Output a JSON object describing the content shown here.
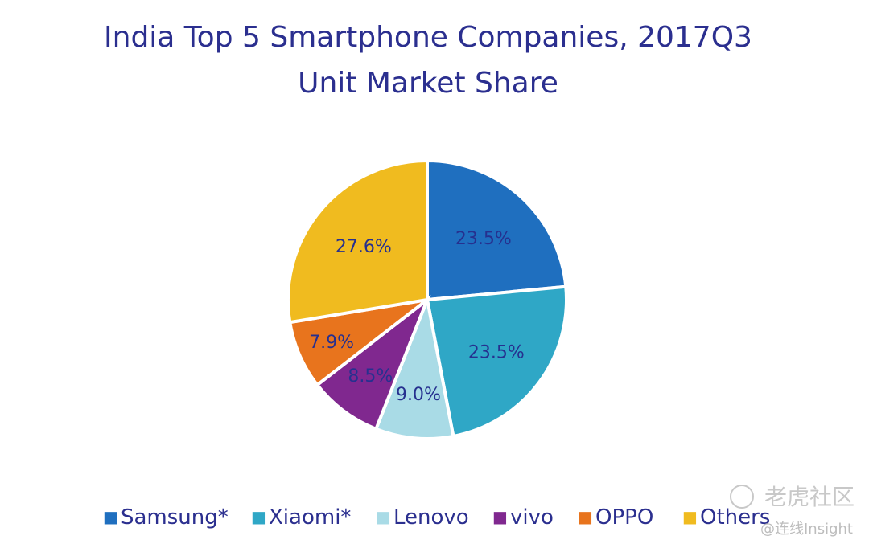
{
  "chart_data": {
    "type": "pie",
    "title": "India Top 5 Smartphone Companies, 2017Q3",
    "subtitle": "Unit Market Share",
    "categories": [
      "Samsung*",
      "Xiaomi*",
      "Lenovo",
      "vivo",
      "OPPO",
      "Others"
    ],
    "values": [
      23.5,
      23.5,
      9.0,
      8.5,
      7.9,
      27.6
    ],
    "labels": [
      "23.5%",
      "23.5%",
      "9.0%",
      "8.5%",
      "7.9%",
      "27.6%"
    ],
    "colors": [
      "#1f6fbf",
      "#2fa7c6",
      "#a9dbe6",
      "#80288f",
      "#e8741d",
      "#f0bb1f"
    ],
    "legend_position": "bottom",
    "legend_marker": "■"
  },
  "watermark": {
    "main": "老虎社区",
    "sub": "@连线Insight"
  }
}
